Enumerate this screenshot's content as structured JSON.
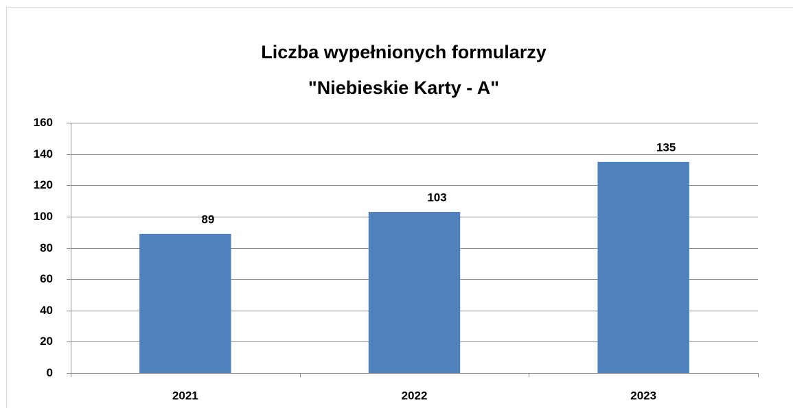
{
  "chart_data": {
    "type": "bar",
    "title": [
      "Liczba wypełnionych formularzy",
      "\"Niebieskie Karty - A\""
    ],
    "categories": [
      "2021",
      "2022",
      "2023"
    ],
    "values": [
      89,
      103,
      135
    ],
    "color": "#4f81bd",
    "ylim": [
      0,
      160
    ],
    "yticks": [
      0,
      20,
      40,
      60,
      80,
      100,
      120,
      140,
      160
    ],
    "grid": true
  }
}
